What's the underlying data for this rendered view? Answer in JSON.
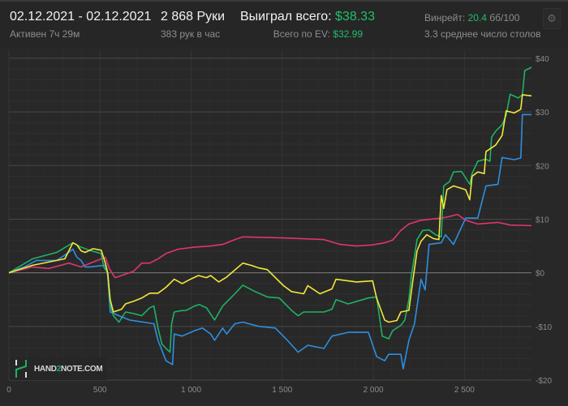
{
  "header": {
    "date_range": "02.12.2021 - 02.12.2021",
    "active_time": "Активен 7ч 29м",
    "hands": "2 868 Руки",
    "hands_per_hour": "383 рук в час",
    "won_total_label": "Выиграл всего:",
    "won_total_value": "$38.33",
    "ev_total_label": "Всего по EV:",
    "ev_total_value": "$32.99",
    "winrate_label": "Винрейт:",
    "winrate_value": "20.4",
    "winrate_unit": "бб/100",
    "avg_tables": "3.3 среднее число столов",
    "settings_icon": "gear-icon"
  },
  "watermark": {
    "text_a": "HAND",
    "text_b": "2",
    "text_c": "NOTE.COM"
  },
  "colors": {
    "accent_green": "#1fbf6a",
    "total": "#1fb264",
    "ev": "#f2e83a",
    "showdown": "#2e8fe0",
    "non_showdown": "#e0356f"
  },
  "chart_data": {
    "type": "line",
    "xlim": [
      0,
      2868
    ],
    "ylim": [
      -20,
      41.5
    ],
    "x_ticks": [
      0,
      500,
      1000,
      1500,
      2000,
      2500
    ],
    "x_tick_labels": [
      "0",
      "500",
      "1 000",
      "1 500",
      "2 000",
      "2 500"
    ],
    "y_ticks": [
      -20,
      -10,
      0,
      10,
      20,
      30,
      40
    ],
    "y_tick_labels": [
      "-$20",
      "-$10",
      "$0",
      "$10",
      "$20",
      "$30",
      "$40"
    ],
    "grid": true,
    "series": [
      {
        "color": "#e0356f",
        "points": [
          [
            0,
            0
          ],
          [
            129,
            1.1
          ],
          [
            218,
            0.8
          ],
          [
            329,
            1.8
          ],
          [
            396,
            1.1
          ],
          [
            484,
            2.3
          ],
          [
            529,
            2.9
          ],
          [
            551,
            0.8
          ],
          [
            582,
            -0.9
          ],
          [
            618,
            -0.5
          ],
          [
            684,
            0.3
          ],
          [
            729,
            1.8
          ],
          [
            773,
            1.8
          ],
          [
            818,
            2.6
          ],
          [
            862,
            3.6
          ],
          [
            929,
            4.4
          ],
          [
            1018,
            4.8
          ],
          [
            1107,
            5.0
          ],
          [
            1173,
            5.3
          ],
          [
            1240,
            6.2
          ],
          [
            1284,
            6.7
          ],
          [
            1507,
            6.5
          ],
          [
            1729,
            6.2
          ],
          [
            1818,
            5.3
          ],
          [
            1907,
            5.0
          ],
          [
            1996,
            5.2
          ],
          [
            2062,
            5.6
          ],
          [
            2106,
            6.1
          ],
          [
            2151,
            7.9
          ],
          [
            2195,
            9.1
          ],
          [
            2262,
            9.8
          ],
          [
            2373,
            10.2
          ],
          [
            2418,
            10.5
          ],
          [
            2462,
            10.9
          ],
          [
            2507,
            9.8
          ],
          [
            2573,
            9.1
          ],
          [
            2684,
            9.4
          ],
          [
            2751,
            8.9
          ],
          [
            2868,
            8.8
          ]
        ]
      },
      {
        "color": "#2e8fe0",
        "points": [
          [
            0,
            0
          ],
          [
            84,
            1.1
          ],
          [
            151,
            2.3
          ],
          [
            262,
            2.3
          ],
          [
            307,
            3.3
          ],
          [
            351,
            4.4
          ],
          [
            373,
            2.9
          ],
          [
            396,
            2.3
          ],
          [
            418,
            1.1
          ],
          [
            440,
            1.1
          ],
          [
            529,
            1.4
          ],
          [
            542,
            -0.5
          ],
          [
            556,
            -7.3
          ],
          [
            604,
            -8.0
          ],
          [
            662,
            -8.8
          ],
          [
            796,
            -9.5
          ],
          [
            818,
            -12.6
          ],
          [
            862,
            -16.4
          ],
          [
            898,
            -17.1
          ],
          [
            907,
            -11.4
          ],
          [
            951,
            -11.8
          ],
          [
            1018,
            -10.8
          ],
          [
            1062,
            -10.3
          ],
          [
            1107,
            -11.4
          ],
          [
            1129,
            -12.6
          ],
          [
            1173,
            -10.3
          ],
          [
            1195,
            -11.4
          ],
          [
            1240,
            -9.5
          ],
          [
            1284,
            -9.2
          ],
          [
            1373,
            -10.0
          ],
          [
            1462,
            -10.3
          ],
          [
            1529,
            -12.6
          ],
          [
            1587,
            -14.8
          ],
          [
            1640,
            -13.5
          ],
          [
            1729,
            -14.1
          ],
          [
            1773,
            -11.8
          ],
          [
            1862,
            -11.1
          ],
          [
            1973,
            -11.1
          ],
          [
            2018,
            -15.6
          ],
          [
            2062,
            -16.4
          ],
          [
            2084,
            -15.2
          ],
          [
            2151,
            -15.2
          ],
          [
            2164,
            -17.9
          ],
          [
            2195,
            -12.6
          ],
          [
            2226,
            -9.5
          ],
          [
            2262,
            -1.2
          ],
          [
            2284,
            -3.2
          ],
          [
            2306,
            5.3
          ],
          [
            2373,
            5.6
          ],
          [
            2396,
            7.1
          ],
          [
            2440,
            5.3
          ],
          [
            2507,
            10.2
          ],
          [
            2573,
            10.2
          ],
          [
            2618,
            16.2
          ],
          [
            2684,
            16.5
          ],
          [
            2707,
            21.5
          ],
          [
            2773,
            21.1
          ],
          [
            2809,
            21.4
          ],
          [
            2818,
            29.5
          ],
          [
            2868,
            29.5
          ]
        ]
      },
      {
        "color": "#1fb264",
        "points": [
          [
            0,
            0
          ],
          [
            129,
            2.6
          ],
          [
            262,
            3.8
          ],
          [
            351,
            5.6
          ],
          [
            396,
            4.8
          ],
          [
            440,
            4.2
          ],
          [
            507,
            3.6
          ],
          [
            520,
            1.1
          ],
          [
            542,
            0
          ],
          [
            556,
            -5.8
          ],
          [
            573,
            -8.0
          ],
          [
            604,
            -9.2
          ],
          [
            640,
            -7.3
          ],
          [
            684,
            -7.6
          ],
          [
            729,
            -8.0
          ],
          [
            773,
            -6.5
          ],
          [
            796,
            -6.2
          ],
          [
            818,
            -10.3
          ],
          [
            840,
            -13.3
          ],
          [
            862,
            -14.1
          ],
          [
            884,
            -14.8
          ],
          [
            893,
            -9.5
          ],
          [
            907,
            -7.3
          ],
          [
            938,
            -7.1
          ],
          [
            973,
            -7.0
          ],
          [
            1018,
            -6.2
          ],
          [
            1044,
            -5.9
          ],
          [
            1062,
            -6.2
          ],
          [
            1084,
            -6.5
          ],
          [
            1129,
            -8.8
          ],
          [
            1173,
            -6.2
          ],
          [
            1240,
            -3.9
          ],
          [
            1284,
            -2.3
          ],
          [
            1351,
            -3.5
          ],
          [
            1418,
            -4.5
          ],
          [
            1484,
            -4.7
          ],
          [
            1551,
            -7.0
          ],
          [
            1587,
            -8.0
          ],
          [
            1618,
            -7.3
          ],
          [
            1729,
            -7.3
          ],
          [
            1773,
            -6.8
          ],
          [
            1795,
            -5.0
          ],
          [
            1862,
            -5.8
          ],
          [
            1973,
            -4.7
          ],
          [
            2018,
            -4.5
          ],
          [
            2049,
            -11.8
          ],
          [
            2084,
            -12.3
          ],
          [
            2106,
            -10.8
          ],
          [
            2151,
            -9.8
          ],
          [
            2173,
            -8.8
          ],
          [
            2195,
            -5.0
          ],
          [
            2209,
            -0.5
          ],
          [
            2240,
            6.2
          ],
          [
            2271,
            7.9
          ],
          [
            2306,
            8.0
          ],
          [
            2342,
            7.1
          ],
          [
            2373,
            6.7
          ],
          [
            2386,
            16.2
          ],
          [
            2418,
            17.0
          ],
          [
            2440,
            18.8
          ],
          [
            2484,
            18.9
          ],
          [
            2507,
            17.7
          ],
          [
            2529,
            16.5
          ],
          [
            2542,
            18.5
          ],
          [
            2573,
            20.8
          ],
          [
            2618,
            21.2
          ],
          [
            2640,
            20.8
          ],
          [
            2649,
            25.3
          ],
          [
            2671,
            26.4
          ],
          [
            2707,
            27.6
          ],
          [
            2729,
            29.4
          ],
          [
            2751,
            33.3
          ],
          [
            2795,
            32.6
          ],
          [
            2818,
            33.2
          ],
          [
            2831,
            37.7
          ],
          [
            2868,
            38.33
          ]
        ]
      },
      {
        "color": "#f2e83a",
        "points": [
          [
            0,
            0
          ],
          [
            129,
            1.4
          ],
          [
            307,
            2.6
          ],
          [
            351,
            5.6
          ],
          [
            373,
            5.2
          ],
          [
            396,
            4.1
          ],
          [
            418,
            3.8
          ],
          [
            462,
            4.5
          ],
          [
            507,
            4.2
          ],
          [
            529,
            1.8
          ],
          [
            542,
            0
          ],
          [
            556,
            -5.0
          ],
          [
            573,
            -7.3
          ],
          [
            618,
            -6.8
          ],
          [
            640,
            -5.8
          ],
          [
            684,
            -5.3
          ],
          [
            729,
            -4.7
          ],
          [
            773,
            -3.8
          ],
          [
            818,
            -3.8
          ],
          [
            862,
            -2.7
          ],
          [
            907,
            -1.2
          ],
          [
            951,
            -2.0
          ],
          [
            996,
            -1.2
          ],
          [
            1040,
            -0.5
          ],
          [
            1084,
            -0.9
          ],
          [
            1107,
            -0.5
          ],
          [
            1151,
            -1.7
          ],
          [
            1195,
            -0.8
          ],
          [
            1284,
            1.8
          ],
          [
            1329,
            1.4
          ],
          [
            1373,
            0.9
          ],
          [
            1418,
            0.6
          ],
          [
            1507,
            -2.4
          ],
          [
            1551,
            -3.5
          ],
          [
            1618,
            -3.9
          ],
          [
            1640,
            -2.4
          ],
          [
            1707,
            -3.9
          ],
          [
            1773,
            -3.0
          ],
          [
            1795,
            -1.2
          ],
          [
            1907,
            -1.7
          ],
          [
            1996,
            -1.5
          ],
          [
            2018,
            -4.7
          ],
          [
            2062,
            -8.8
          ],
          [
            2084,
            -9.2
          ],
          [
            2129,
            -8.9
          ],
          [
            2151,
            -7.3
          ],
          [
            2195,
            -7.0
          ],
          [
            2218,
            -1.2
          ],
          [
            2240,
            4.1
          ],
          [
            2262,
            5.9
          ],
          [
            2293,
            7.1
          ],
          [
            2329,
            6.4
          ],
          [
            2360,
            6.2
          ],
          [
            2373,
            14.4
          ],
          [
            2386,
            12.0
          ],
          [
            2404,
            15.5
          ],
          [
            2440,
            16.2
          ],
          [
            2507,
            15.5
          ],
          [
            2529,
            13.6
          ],
          [
            2542,
            18.0
          ],
          [
            2573,
            18.8
          ],
          [
            2609,
            18.5
          ],
          [
            2618,
            22.6
          ],
          [
            2671,
            23.8
          ],
          [
            2707,
            25.6
          ],
          [
            2729,
            30.2
          ],
          [
            2773,
            29.8
          ],
          [
            2809,
            30.5
          ],
          [
            2818,
            33.2
          ],
          [
            2868,
            32.99
          ]
        ]
      }
    ]
  }
}
